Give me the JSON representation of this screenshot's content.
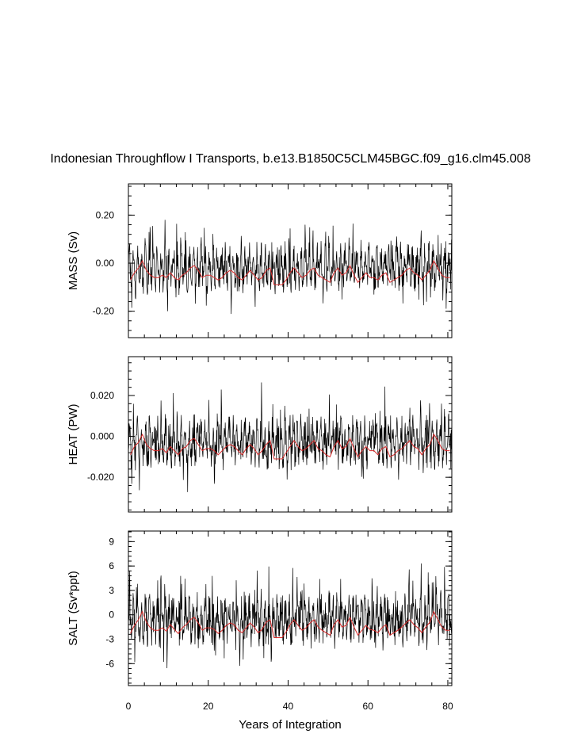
{
  "title": "Indonesian Throughflow I Transports, b.e13.B1850C5CLM45BGC.f09_g16.clm45.008",
  "chart_data": {
    "type": "line",
    "xlabel": "Years of Integration",
    "xlim": [
      0,
      81
    ],
    "xticks": [
      "0",
      "20",
      "40",
      "60",
      "80"
    ],
    "xtick_values": [
      0,
      20,
      40,
      60,
      80
    ],
    "series_styles": {
      "monthly": "#000000",
      "annual_mean": "#d92b2b"
    },
    "panels": [
      {
        "ylabel": "MASS (Sv)",
        "ylim": [
          -0.31,
          0.33
        ],
        "yticks": [
          0.2,
          0.0,
          -0.2
        ],
        "ytick_labels": [
          "0.20",
          "0.00",
          "-0.20"
        ],
        "monthly_amp": [
          0.3,
          0.28
        ],
        "monthly_center": -0.02,
        "annual_mean": [
          -0.07,
          -0.04,
          -0.02,
          0.01,
          -0.03,
          -0.05,
          -0.06,
          -0.06,
          -0.05,
          -0.06,
          -0.04,
          -0.06,
          -0.07,
          -0.05,
          -0.04,
          -0.02,
          -0.01,
          -0.03,
          -0.06,
          -0.05,
          -0.05,
          -0.06,
          -0.07,
          -0.06,
          -0.04,
          -0.03,
          -0.04,
          -0.06,
          -0.07,
          -0.05,
          -0.03,
          -0.05,
          -0.07,
          -0.06,
          -0.03,
          -0.02,
          -0.09,
          -0.09,
          -0.09,
          -0.07,
          -0.04,
          -0.02,
          -0.04,
          -0.06,
          -0.05,
          -0.03,
          -0.02,
          -0.05,
          -0.06,
          -0.07,
          -0.08,
          -0.04,
          -0.02,
          -0.05,
          -0.04,
          -0.01,
          -0.05,
          -0.08,
          -0.06,
          -0.04,
          -0.06,
          -0.06,
          -0.07,
          -0.05,
          -0.04,
          -0.08,
          -0.07,
          -0.06,
          -0.05,
          -0.03,
          -0.02,
          -0.04,
          -0.05,
          -0.07,
          -0.05,
          -0.03,
          0.01,
          -0.02,
          -0.05,
          -0.06,
          -0.06
        ]
      },
      {
        "ylabel": "HEAT (PW)",
        "ylim": [
          -0.037,
          0.039
        ],
        "yticks": [
          0.02,
          0.0,
          -0.02
        ],
        "ytick_labels": [
          "0.020",
          "0.000",
          "-0.020"
        ],
        "monthly_amp": [
          0.036,
          0.034
        ],
        "monthly_center": -0.003,
        "annual_mean": [
          -0.009,
          -0.005,
          -0.003,
          0.001,
          -0.004,
          -0.006,
          -0.007,
          -0.007,
          -0.006,
          -0.008,
          -0.005,
          -0.007,
          -0.009,
          -0.006,
          -0.005,
          -0.002,
          -0.001,
          -0.004,
          -0.007,
          -0.006,
          -0.006,
          -0.007,
          -0.009,
          -0.007,
          -0.005,
          -0.004,
          -0.005,
          -0.007,
          -0.009,
          -0.006,
          -0.004,
          -0.006,
          -0.009,
          -0.007,
          -0.004,
          -0.002,
          -0.011,
          -0.011,
          -0.011,
          -0.008,
          -0.005,
          -0.002,
          -0.005,
          -0.007,
          -0.006,
          -0.004,
          -0.002,
          -0.006,
          -0.007,
          -0.009,
          -0.01,
          -0.005,
          -0.002,
          -0.006,
          -0.005,
          -0.001,
          -0.006,
          -0.01,
          -0.007,
          -0.005,
          -0.007,
          -0.007,
          -0.009,
          -0.006,
          -0.005,
          -0.01,
          -0.009,
          -0.007,
          -0.006,
          -0.004,
          -0.002,
          -0.005,
          -0.006,
          -0.009,
          -0.006,
          -0.004,
          0.001,
          -0.002,
          -0.006,
          -0.007,
          -0.007
        ]
      },
      {
        "ylabel": "SALT (Sv*ppt)",
        "ylim": [
          -8.7,
          10.3
        ],
        "yticks": [
          9,
          6,
          3,
          0,
          -3,
          -6
        ],
        "ytick_labels": [
          "9",
          "6",
          "3",
          "0",
          "-3",
          "-6"
        ],
        "monthly_amp": [
          9.4,
          8.6
        ],
        "monthly_center": -0.6,
        "annual_mean": [
          -2.3,
          -1.3,
          -0.6,
          0.4,
          -0.9,
          -1.6,
          -1.9,
          -1.9,
          -1.6,
          -2.0,
          -1.2,
          -1.8,
          -2.3,
          -1.6,
          -1.2,
          -0.6,
          -0.3,
          -1.0,
          -1.9,
          -1.6,
          -1.6,
          -1.8,
          -2.3,
          -1.9,
          -1.3,
          -1.0,
          -1.2,
          -1.9,
          -2.2,
          -1.6,
          -1.0,
          -1.5,
          -2.2,
          -1.8,
          -0.9,
          -0.6,
          -2.8,
          -2.8,
          -2.8,
          -2.1,
          -1.2,
          -0.6,
          -1.3,
          -1.9,
          -1.6,
          -1.0,
          -0.6,
          -1.5,
          -1.9,
          -2.2,
          -2.5,
          -1.2,
          -0.6,
          -1.5,
          -1.3,
          -0.3,
          -1.5,
          -2.5,
          -1.9,
          -1.3,
          -1.8,
          -1.9,
          -2.2,
          -1.6,
          -1.2,
          -2.5,
          -2.2,
          -1.9,
          -1.5,
          -1.0,
          -0.6,
          -1.2,
          -1.6,
          -2.2,
          -1.5,
          -0.9,
          0.4,
          -0.6,
          -1.5,
          -1.9,
          -1.9
        ]
      }
    ]
  }
}
